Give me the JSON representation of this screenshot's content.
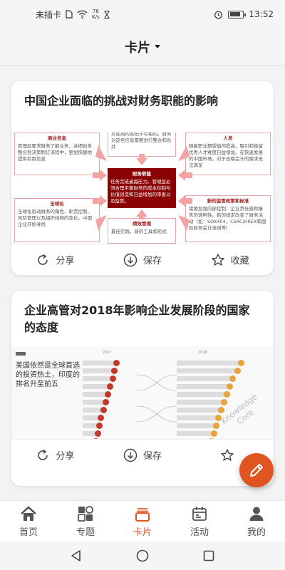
{
  "status_bar": {
    "carrier": "未插卡",
    "net_speed_value": "76",
    "net_speed_unit": "K/s",
    "time": "13:52",
    "battery_level": 0.85
  },
  "header": {
    "title": "卡片"
  },
  "cards": [
    {
      "title": "中国企业面临的挑战对财务职能的影响",
      "diagram": {
        "top_left_head": "商业信息",
        "top_left_text": "管理层要求财务了解业务，并把财务整合到决策制订流程中，更加快捷地提供有用信息",
        "top_mid_text": "点使用的系统不尽相同。财务对这些信息需要进行整合和合并",
        "top_right_head": "人员",
        "top_right_text": "随着职业期望值的提高，吸引和挽留优秀人才难度日益增加。在快速发展的中国市场，对于合格会计的需求无法满足",
        "center_head": "财务职能",
        "center_text": "任务完成逾越压力。管理层必须合理平衡财务的成本控制与价值创造和日益增加的审查以及监管。",
        "bottom_left_head": "全球化",
        "bottom_left_text": "全球化驱动财务的角色、职责控制、风险管理以及组织结构的变化。中国企业开始寻找",
        "bottom_mid_head": "绩效管理",
        "bottom_mid_text": "最佳实践，新的工具和形式",
        "bottom_right_head": "新的监管政策和标准",
        "bottom_right_text": "需要加强内部控制、企业责任感和报告的透明性。新的规定改变了财务活动（如：SOX404，CSRC/HKEX和国际财务会计准则等）"
      },
      "actions": [
        {
          "icon": "share-icon",
          "label": "分享"
        },
        {
          "icon": "download-icon",
          "label": "保存"
        },
        {
          "icon": "star-icon",
          "label": "收藏"
        }
      ]
    },
    {
      "title": "企业高管对2018年影响企业发展阶段的国家的态度",
      "figure": {
        "headline": "美国依然是全球首选的投资热土，印度的排名升至前五",
        "watermark_line1": "Knowledge",
        "watermark_line2": "Core",
        "col_left_label": "2017",
        "col_right_label": "2018",
        "left_values": [
          0.62,
          0.58,
          0.55,
          0.5,
          0.46,
          0.42,
          0.38,
          0.33,
          0.3,
          0.27,
          0.24,
          0.21,
          0.18,
          0.15
        ],
        "right_values": [
          0.9,
          0.85,
          0.78,
          0.74,
          0.7,
          0.66,
          0.62,
          0.58,
          0.55,
          0.52,
          0.48,
          0.45,
          0.42,
          0.38
        ]
      },
      "actions": [
        {
          "icon": "share-icon",
          "label": "分享"
        },
        {
          "icon": "download-icon",
          "label": "保存"
        },
        {
          "icon": "star-icon",
          "label": ""
        }
      ]
    }
  ],
  "bottom_nav": [
    {
      "icon": "home-icon",
      "label": "首页",
      "active": false
    },
    {
      "icon": "topics-icon",
      "label": "专题",
      "active": false
    },
    {
      "icon": "cards-icon",
      "label": "卡片",
      "active": true
    },
    {
      "icon": "calendar-icon",
      "label": "活动",
      "active": false
    },
    {
      "icon": "profile-icon",
      "label": "我的",
      "active": false
    }
  ],
  "colors": {
    "accent": "#e0551f",
    "diagram_red": "#8b0000",
    "arrow_pink": "#f4a3a3"
  }
}
